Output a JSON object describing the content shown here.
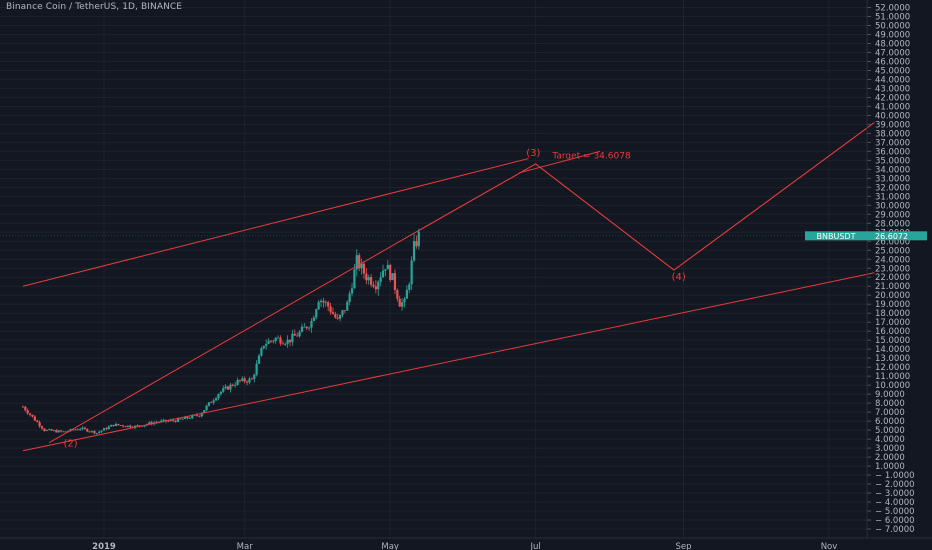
{
  "header": {
    "title": "Binance Coin / TetherUS, 1D, BINANCE"
  },
  "colors": {
    "background": "#131722",
    "grid": "#1e222d",
    "up": "#26a69a",
    "down": "#ef5350",
    "drawing": "#e83b3b",
    "axis_text": "#b2b5be",
    "price_tag": "#26a69a"
  },
  "price_tag": {
    "symbol": "BNBUSDT",
    "value": "26.6072"
  },
  "annotations": {
    "wave_2": "(2)",
    "wave_3": "(3)",
    "wave_4": "(4)",
    "target": "Target = 34.6078"
  },
  "chart_data": {
    "type": "candlestick",
    "title": "Binance Coin / TetherUS, 1D, BINANCE",
    "y_range": [
      -7,
      52
    ],
    "y_ticks": [
      "52.0000",
      "51.0000",
      "50.0000",
      "49.0000",
      "48.0000",
      "47.0000",
      "46.0000",
      "45.0000",
      "44.0000",
      "43.0000",
      "42.0000",
      "41.0000",
      "40.0000",
      "39.0000",
      "38.0000",
      "37.0000",
      "36.0000",
      "35.0000",
      "34.0000",
      "33.0000",
      "32.0000",
      "31.0000",
      "30.0000",
      "29.0000",
      "28.0000",
      "27.0000",
      "26.0000",
      "25.0000",
      "24.0000",
      "23.0000",
      "22.0000",
      "21.0000",
      "20.0000",
      "19.0000",
      "18.0000",
      "17.0000",
      "16.0000",
      "15.0000",
      "14.0000",
      "13.0000",
      "12.0000",
      "11.0000",
      "10.0000",
      "9.0000",
      "8.0000",
      "7.0000",
      "6.0000",
      "5.0000",
      "4.0000",
      "3.0000",
      "2.0000",
      "1.0000",
      "− 1.0000",
      "− 2.0000",
      "− 3.0000",
      "− 4.0000",
      "− 5.0000",
      "− 6.0000",
      "− 7.0000"
    ],
    "x_ticks": [
      {
        "label": "2019",
        "date": "2019-01-01",
        "bold": true
      },
      {
        "label": "Mar",
        "date": "2019-03-01",
        "bold": false
      },
      {
        "label": "May",
        "date": "2019-05-01",
        "bold": false
      },
      {
        "label": "Jul",
        "date": "2019-07-01",
        "bold": false
      },
      {
        "label": "Sep",
        "date": "2019-09-01",
        "bold": false
      },
      {
        "label": "Nov",
        "date": "2019-11-01",
        "bold": false
      }
    ],
    "grid": true,
    "last_price": 26.6072,
    "price_path": [
      [
        "2018-11-28",
        7.6
      ],
      [
        "2018-12-07",
        5.0
      ],
      [
        "2018-12-15",
        4.8
      ],
      [
        "2018-12-22",
        5.2
      ],
      [
        "2018-12-29",
        4.7
      ],
      [
        "2019-01-05",
        5.6
      ],
      [
        "2019-01-14",
        5.4
      ],
      [
        "2019-01-23",
        5.9
      ],
      [
        "2019-02-01",
        6.1
      ],
      [
        "2019-02-10",
        6.7
      ],
      [
        "2019-02-18",
        9.1
      ],
      [
        "2019-02-26",
        10.4
      ],
      [
        "2019-03-04",
        10.6
      ],
      [
        "2019-03-09",
        14.6
      ],
      [
        "2019-03-14",
        15.2
      ],
      [
        "2019-03-19",
        14.9
      ],
      [
        "2019-03-24",
        15.8
      ],
      [
        "2019-03-29",
        17.1
      ],
      [
        "2019-04-01",
        19.7
      ],
      [
        "2019-04-05",
        18.8
      ],
      [
        "2019-04-09",
        17.1
      ],
      [
        "2019-04-13",
        19.0
      ],
      [
        "2019-04-17",
        23.8
      ],
      [
        "2019-04-21",
        22.1
      ],
      [
        "2019-04-25",
        21.3
      ],
      [
        "2019-04-29",
        23.4
      ],
      [
        "2019-05-02",
        21.8
      ],
      [
        "2019-05-05",
        19.2
      ],
      [
        "2019-05-07",
        19.1
      ],
      [
        "2019-05-09",
        21.7
      ],
      [
        "2019-05-11",
        25.3
      ],
      [
        "2019-05-13",
        26.6
      ]
    ],
    "lines": [
      {
        "name": "channel-top",
        "from": [
          "2018-11-28",
          21.0
        ],
        "to": [
          "2019-06-28",
          35.2
        ]
      },
      {
        "name": "channel-bottom",
        "from": [
          "2018-11-28",
          2.7
        ],
        "to": [
          "2019-11-20",
          22.5
        ]
      },
      {
        "name": "wedge-line",
        "from": [
          "2018-12-09",
          3.6
        ],
        "to": [
          "2019-05-13",
          27.2
        ]
      },
      {
        "name": "target-arrow",
        "from": [
          "2019-06-24",
          33.6
        ],
        "to": [
          "2019-07-28",
          36.0
        ]
      }
    ],
    "projection": [
      [
        "2019-05-13",
        27.2
      ],
      [
        "2019-07-01",
        34.6
      ],
      [
        "2019-08-28",
        22.8
      ],
      [
        "2019-11-20",
        39.2
      ]
    ],
    "wave_labels": [
      {
        "label": "(2)",
        "date": "2018-12-18",
        "price": 3.5
      },
      {
        "label": "(3)",
        "date": "2019-06-30",
        "price": 35.8
      },
      {
        "label": "(4)",
        "date": "2019-08-30",
        "price": 22.0
      }
    ]
  }
}
